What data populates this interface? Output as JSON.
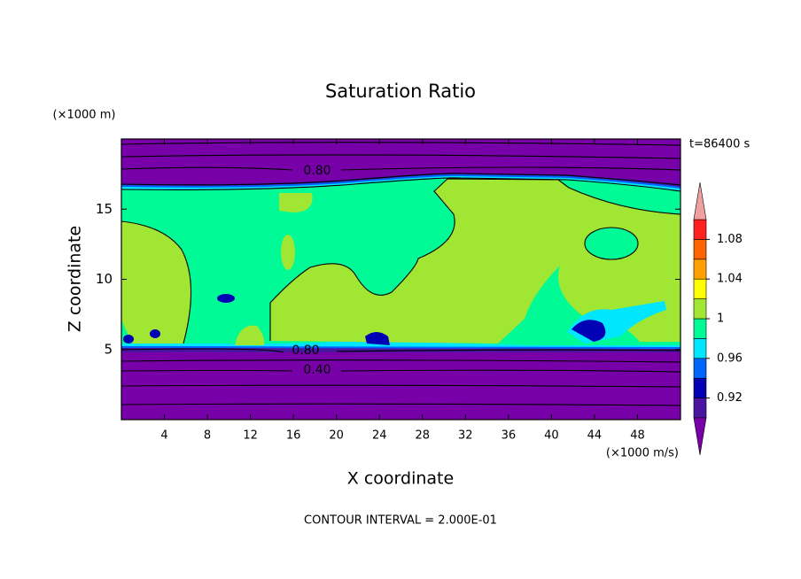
{
  "chart_data": {
    "type": "contour",
    "title": "Saturation Ratio",
    "x_label": "X coordinate",
    "y_label": "Z coordinate",
    "x_unit": "(×1000 m/s)",
    "y_unit": "(×1000 m)",
    "time_label": "t=86400 s",
    "footer": "CONTOUR INTERVAL = 2.000E-01",
    "xlim": [
      0,
      52
    ],
    "ylim": [
      0,
      20
    ],
    "xticks": [
      4,
      8,
      12,
      16,
      20,
      24,
      28,
      32,
      36,
      40,
      44,
      48
    ],
    "yticks": [
      5,
      10,
      15
    ],
    "levels": [
      0.9,
      0.92,
      0.94,
      0.96,
      0.98,
      1,
      1.02,
      1.04,
      1.06,
      1.08,
      1.1
    ],
    "colors": [
      "#7800a8",
      "#4b14a0",
      "#0000b4",
      "#0064ff",
      "#00e6ff",
      "#00fa96",
      "#a0e632",
      "#ffff00",
      "#ffa000",
      "#ff6400",
      "#ff2020",
      "#f0a0a0"
    ],
    "colorbar_ticks": [
      0.92,
      0.96,
      1,
      1.04,
      1.08
    ],
    "contour_labels": [
      {
        "value": 0.8,
        "label": "0.80"
      },
      {
        "value": 0.8,
        "label": "0.80"
      },
      {
        "value": 0.4,
        "label": "0.40"
      }
    ]
  }
}
